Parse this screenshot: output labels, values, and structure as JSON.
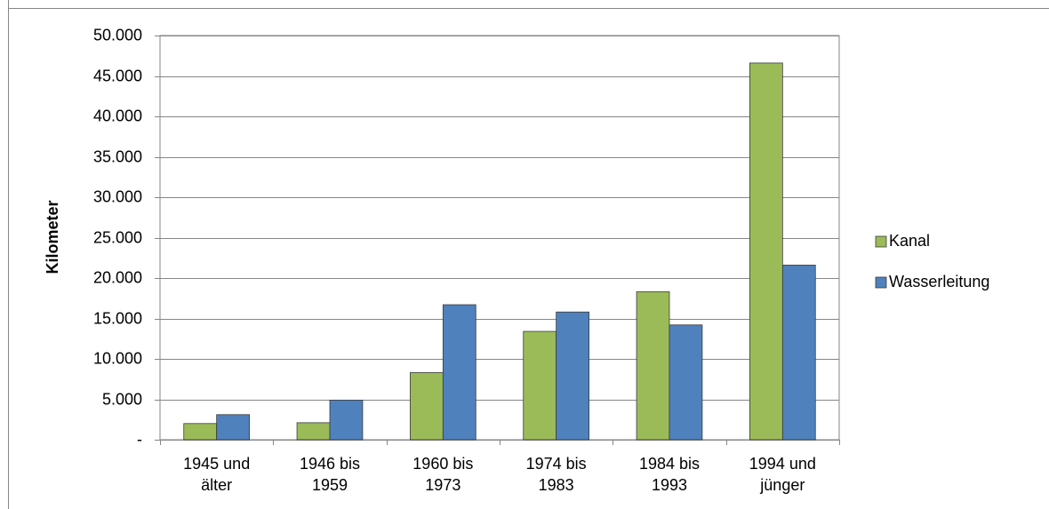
{
  "chart_data": {
    "type": "bar",
    "y_label": "Kilometer",
    "categories": [
      "1945 und\nälter",
      "1946 bis\n1959",
      "1960 bis\n1973",
      "1974 bis\n1983",
      "1984 bis\n1993",
      "1994 und\njünger"
    ],
    "series": [
      {
        "name": "Kanal",
        "color": "#9bbb59",
        "values": [
          2000,
          2100,
          8300,
          13400,
          18300,
          46600
        ]
      },
      {
        "name": "Wasserleitung",
        "color": "#4f81bd",
        "values": [
          3100,
          4900,
          16700,
          15800,
          14200,
          21600
        ]
      }
    ],
    "ylim": [
      0,
      50000
    ],
    "yticks": [
      {
        "value": 0,
        "label": "-"
      },
      {
        "value": 5000,
        "label": "5.000"
      },
      {
        "value": 10000,
        "label": "10.000"
      },
      {
        "value": 15000,
        "label": "15.000"
      },
      {
        "value": 20000,
        "label": "20.000"
      },
      {
        "value": 25000,
        "label": "25.000"
      },
      {
        "value": 30000,
        "label": "30.000"
      },
      {
        "value": 35000,
        "label": "35.000"
      },
      {
        "value": 40000,
        "label": "40.000"
      },
      {
        "value": 45000,
        "label": "45.000"
      },
      {
        "value": 50000,
        "label": "50.000"
      }
    ],
    "grid": true,
    "legend": "right"
  }
}
